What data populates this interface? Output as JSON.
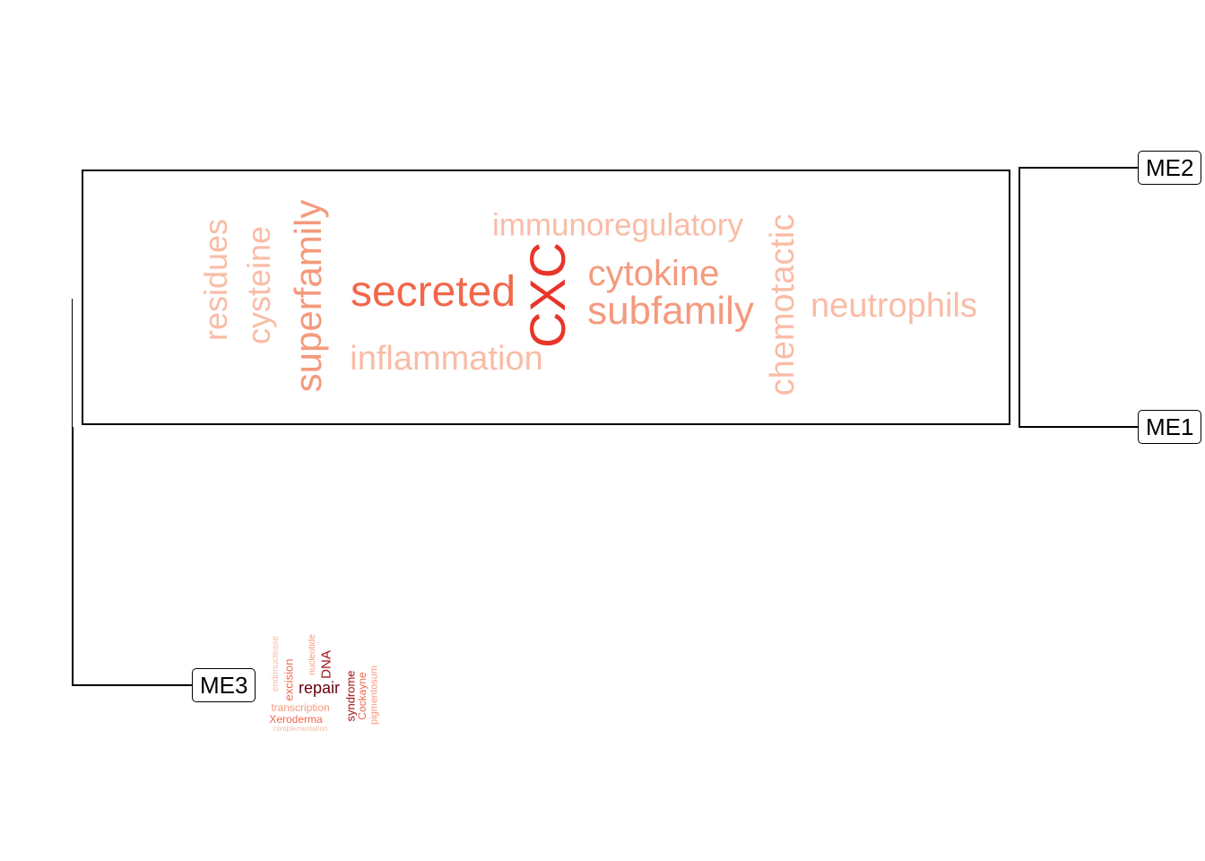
{
  "nodes": {
    "me2": "ME2",
    "me1": "ME1",
    "me3": "ME3"
  },
  "colors": {
    "strong": "#e8352a",
    "mid": "#f2674a",
    "light": "#f49a7d",
    "pale": "#f9bca6",
    "dark": "#67000d",
    "darkred": "#a50f15"
  },
  "wordcloud_main": {
    "words": [
      "residues",
      "cysteine",
      "superfamily",
      "secreted",
      "inflammation",
      "CXC",
      "immunoregulatory",
      "cytokine",
      "subfamily",
      "chemotactic",
      "neutrophils"
    ]
  },
  "wordcloud_me3": {
    "words": [
      "endonuclease",
      "excision",
      "repair",
      "nucleotide",
      "DNA",
      "syndrome",
      "Cockayne",
      "pigmentosum",
      "transcription",
      "Xeroderma",
      "complementation"
    ]
  }
}
